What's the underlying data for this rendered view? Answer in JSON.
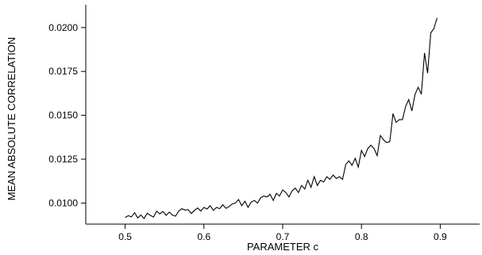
{
  "chart_data": {
    "type": "line",
    "title": "",
    "xlabel": "PARAMETER c",
    "ylabel": "MEAN ABSOLUTE CORRELATION",
    "xlim": [
      0.45,
      0.95
    ],
    "ylim": [
      0.0088,
      0.0213
    ],
    "grid": false,
    "legend": "none",
    "x_ticks": [
      "0.5",
      "0.6",
      "0.7",
      "0.8",
      "0.9"
    ],
    "y_ticks": [
      "0.0100",
      "0.0125",
      "0.0150",
      "0.0175",
      "0.0200"
    ],
    "series": [
      {
        "x": [
          0.5,
          0.504,
          0.508,
          0.512,
          0.516,
          0.52,
          0.524,
          0.528,
          0.532,
          0.536,
          0.54,
          0.544,
          0.548,
          0.552,
          0.556,
          0.56,
          0.564,
          0.568,
          0.572,
          0.576,
          0.58,
          0.584,
          0.588,
          0.592,
          0.596,
          0.6,
          0.604,
          0.608,
          0.612,
          0.616,
          0.62,
          0.624,
          0.628,
          0.632,
          0.636,
          0.64,
          0.644,
          0.648,
          0.652,
          0.656,
          0.66,
          0.664,
          0.668,
          0.672,
          0.676,
          0.68,
          0.684,
          0.688,
          0.692,
          0.696,
          0.7,
          0.704,
          0.708,
          0.712,
          0.716,
          0.72,
          0.724,
          0.728,
          0.732,
          0.736,
          0.74,
          0.744,
          0.748,
          0.752,
          0.756,
          0.76,
          0.764,
          0.768,
          0.772,
          0.776,
          0.78,
          0.784,
          0.788,
          0.792,
          0.796,
          0.8,
          0.804,
          0.808,
          0.812,
          0.816,
          0.82,
          0.824,
          0.828,
          0.832,
          0.836,
          0.84,
          0.844,
          0.848,
          0.852,
          0.856,
          0.86,
          0.864,
          0.868,
          0.872,
          0.876,
          0.88,
          0.884,
          0.888,
          0.892,
          0.896
        ],
        "values": [
          0.00918,
          0.00928,
          0.00921,
          0.00945,
          0.00915,
          0.00932,
          0.00912,
          0.00942,
          0.0093,
          0.0092,
          0.00954,
          0.00938,
          0.00952,
          0.0093,
          0.00948,
          0.00932,
          0.00925,
          0.00955,
          0.00968,
          0.0096,
          0.00962,
          0.0094,
          0.00958,
          0.00972,
          0.00955,
          0.00975,
          0.00966,
          0.00985,
          0.00958,
          0.00975,
          0.00968,
          0.0099,
          0.0097,
          0.0098,
          0.00995,
          0.01,
          0.0102,
          0.00985,
          0.0101,
          0.00975,
          0.01005,
          0.01015,
          0.01,
          0.0103,
          0.0104,
          0.01035,
          0.0105,
          0.01015,
          0.01055,
          0.0104,
          0.01075,
          0.0106,
          0.01035,
          0.0107,
          0.01085,
          0.0106,
          0.011,
          0.0108,
          0.0113,
          0.0109,
          0.0115,
          0.011,
          0.0113,
          0.0112,
          0.0115,
          0.01135,
          0.0116,
          0.0114,
          0.0115,
          0.01135,
          0.0122,
          0.0124,
          0.01215,
          0.01255,
          0.01205,
          0.013,
          0.01265,
          0.0131,
          0.0133,
          0.0131,
          0.0127,
          0.01385,
          0.0136,
          0.01345,
          0.0135,
          0.0151,
          0.0146,
          0.01475,
          0.01475,
          0.0155,
          0.0159,
          0.01525,
          0.0162,
          0.0166,
          0.0162,
          0.01855,
          0.0174,
          0.0197,
          0.01995,
          0.02055
        ]
      }
    ]
  }
}
